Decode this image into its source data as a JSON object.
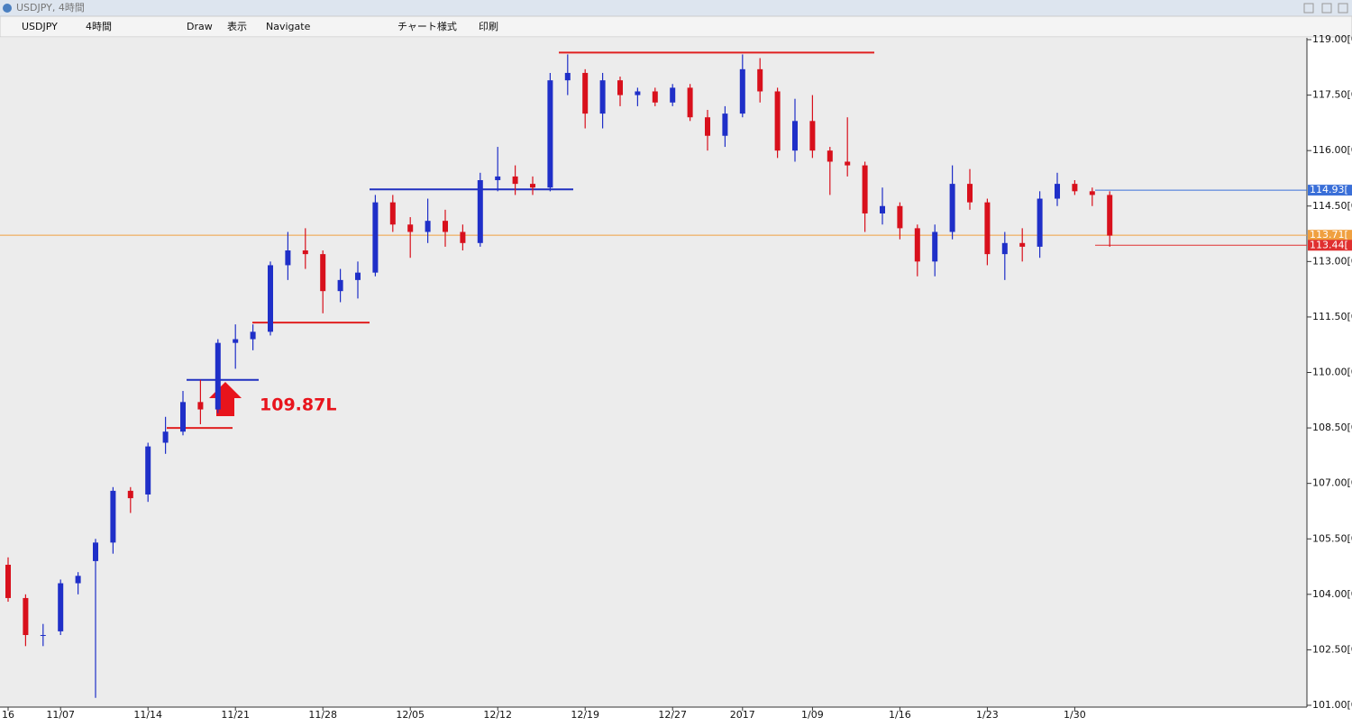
{
  "window": {
    "title": "USDJPY, 4時間"
  },
  "toolbar": [
    "USDJPY",
    "4時間",
    "Draw",
    "表示",
    "Navigate",
    "チャート様式",
    "印刷"
  ],
  "chart_data": {
    "type": "candlestick",
    "up_color": "#1f2fc8",
    "down_color": "#d8101c",
    "categories": [
      "16",
      null,
      null,
      "11/07",
      null,
      null,
      null,
      null,
      "11/14",
      null,
      null,
      null,
      null,
      "11/21",
      null,
      null,
      null,
      null,
      "11/28",
      null,
      null,
      null,
      null,
      "12/05",
      null,
      null,
      null,
      null,
      "12/12",
      null,
      null,
      null,
      null,
      "12/19",
      null,
      null,
      null,
      null,
      "12/27",
      null,
      null,
      null,
      "2017",
      null,
      null,
      null,
      "1/09",
      null,
      null,
      null,
      null,
      "1/16",
      null,
      null,
      null,
      null,
      "1/23",
      null,
      null,
      null,
      null,
      "1/30",
      null,
      null
    ],
    "open": [
      104.8,
      103.9,
      102.9,
      103.0,
      104.3,
      104.9,
      105.4,
      106.8,
      106.7,
      108.1,
      108.4,
      109.2,
      109.0,
      110.8,
      110.9,
      111.1,
      112.9,
      113.3,
      113.2,
      112.2,
      112.5,
      112.7,
      114.6,
      114.0,
      113.8,
      114.1,
      113.8,
      113.5,
      115.2,
      115.3,
      115.1,
      115.0,
      117.9,
      118.1,
      117.0,
      117.9,
      117.5,
      117.6,
      117.3,
      117.7,
      116.9,
      116.4,
      117.0,
      118.2,
      117.6,
      116.0,
      116.8,
      116.0,
      115.7,
      115.6,
      114.3,
      114.5,
      113.9,
      113.0,
      113.8,
      115.1,
      114.6,
      113.2,
      113.5,
      113.4,
      114.7,
      115.1,
      114.9,
      114.8
    ],
    "high": [
      105.0,
      104.0,
      103.2,
      104.4,
      104.6,
      105.5,
      106.9,
      106.9,
      108.1,
      108.8,
      109.5,
      109.8,
      110.9,
      111.3,
      111.3,
      113.0,
      113.8,
      113.9,
      113.3,
      112.8,
      113.0,
      114.8,
      114.8,
      114.2,
      114.7,
      114.4,
      114.0,
      115.4,
      116.1,
      115.6,
      115.3,
      118.1,
      118.6,
      118.2,
      118.1,
      118.0,
      117.7,
      117.7,
      117.8,
      117.8,
      117.1,
      117.2,
      118.6,
      118.5,
      117.7,
      117.4,
      117.5,
      116.1,
      116.9,
      115.7,
      115.0,
      114.6,
      114.0,
      114.0,
      115.6,
      115.5,
      114.7,
      113.8,
      113.9,
      114.9,
      115.4,
      115.2,
      115.0,
      114.9
    ],
    "low": [
      103.8,
      102.6,
      102.6,
      102.9,
      104.0,
      101.2,
      105.1,
      106.2,
      106.5,
      107.8,
      108.3,
      108.6,
      108.9,
      110.1,
      110.6,
      111.0,
      112.5,
      112.8,
      111.6,
      111.9,
      112.0,
      112.6,
      113.8,
      113.1,
      113.5,
      113.4,
      113.3,
      113.4,
      114.9,
      114.8,
      114.8,
      114.9,
      117.5,
      116.6,
      116.6,
      117.2,
      117.2,
      117.2,
      117.2,
      116.8,
      116.0,
      116.1,
      116.9,
      117.3,
      115.8,
      115.7,
      115.8,
      114.8,
      115.3,
      113.8,
      114.0,
      113.6,
      112.6,
      112.6,
      113.6,
      114.4,
      112.9,
      112.5,
      113.0,
      113.1,
      114.5,
      114.8,
      114.5,
      113.4
    ],
    "close": [
      103.9,
      102.9,
      102.9,
      104.3,
      104.5,
      105.4,
      106.8,
      106.6,
      108.0,
      108.4,
      109.2,
      109.0,
      110.8,
      110.9,
      111.1,
      112.9,
      113.3,
      113.2,
      112.2,
      112.5,
      112.7,
      114.6,
      114.0,
      113.8,
      114.1,
      113.8,
      113.5,
      115.2,
      115.3,
      115.1,
      115.0,
      117.9,
      118.1,
      117.0,
      117.9,
      117.5,
      117.6,
      117.3,
      117.7,
      116.9,
      116.4,
      117.0,
      118.2,
      117.6,
      116.0,
      116.8,
      116.0,
      115.7,
      115.6,
      114.3,
      114.5,
      113.9,
      113.0,
      113.8,
      115.1,
      114.6,
      113.2,
      113.5,
      113.4,
      114.7,
      115.1,
      114.9,
      114.8,
      113.7
    ],
    "ylim": [
      101,
      119
    ],
    "yticks": [
      {
        "value": 101,
        "label": "101.00[0"
      },
      {
        "value": 102.5,
        "label": "102.50[0"
      },
      {
        "value": 104,
        "label": "104.00[0"
      },
      {
        "value": 105.5,
        "label": "105.50[0"
      },
      {
        "value": 107,
        "label": "107.00[0"
      },
      {
        "value": 108.5,
        "label": "108.50[0"
      },
      {
        "value": 110,
        "label": "110.00[0"
      },
      {
        "value": 111.5,
        "label": "111.50[0"
      },
      {
        "value": 113,
        "label": "113.00[0"
      },
      {
        "value": 114.5,
        "label": "114.50[0"
      },
      {
        "value": 116,
        "label": "116.00[0"
      },
      {
        "value": 117.5,
        "label": "117.50[0"
      },
      {
        "value": 119,
        "label": "119.00[0"
      }
    ],
    "levels": [
      {
        "value": 118.65,
        "color": "#e02020"
      },
      {
        "value": 114.95,
        "color": "#2030c0"
      },
      {
        "value": 111.35,
        "color": "#e02020"
      },
      {
        "value": 109.8,
        "color": "#2030c0"
      },
      {
        "value": 108.5,
        "color": "#e02020"
      }
    ],
    "price_tags": [
      {
        "value": 114.93,
        "label": "114.93[",
        "color": "#3a6fd8"
      },
      {
        "value": 113.71,
        "label": "113.71[",
        "color": "#f0a040"
      },
      {
        "value": 113.44,
        "label": "113.44[",
        "color": "#e03030"
      }
    ],
    "annotation": "109.87L"
  }
}
